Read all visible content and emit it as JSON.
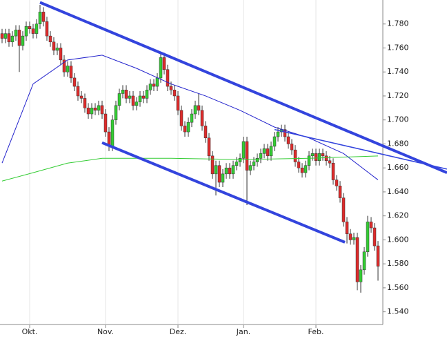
{
  "chart_data": {
    "type": "candlestick",
    "categories": [
      null,
      null,
      null,
      null,
      null,
      null,
      null,
      null,
      "Okt.",
      null,
      null,
      null,
      null,
      null,
      null,
      null,
      null,
      null,
      null,
      null,
      null,
      null,
      null,
      null,
      null,
      null,
      null,
      null,
      null,
      null,
      "Nov.",
      null,
      null,
      null,
      null,
      null,
      null,
      null,
      null,
      null,
      null,
      null,
      null,
      null,
      null,
      null,
      null,
      null,
      null,
      null,
      null,
      "Dez.",
      null,
      null,
      null,
      null,
      null,
      null,
      null,
      null,
      null,
      null,
      null,
      null,
      null,
      null,
      null,
      null,
      null,
      null,
      "Jan.",
      null,
      null,
      null,
      null,
      null,
      null,
      null,
      null,
      null,
      null,
      null,
      null,
      null,
      null,
      null,
      null,
      null,
      null,
      null,
      null,
      "Feb.",
      null,
      null,
      null,
      null,
      null,
      null,
      null,
      null,
      null,
      null,
      null,
      null,
      null,
      null,
      null,
      null,
      null,
      null
    ],
    "open": [
      1.772,
      1.768,
      1.772,
      1.765,
      1.77,
      1.775,
      1.762,
      1.77,
      1.778,
      1.776,
      1.772,
      1.78,
      1.79,
      1.782,
      1.77,
      1.765,
      1.758,
      1.76,
      1.75,
      1.74,
      1.745,
      1.735,
      1.728,
      1.72,
      1.718,
      1.71,
      1.705,
      1.71,
      1.708,
      1.712,
      1.705,
      1.69,
      1.678,
      1.7,
      1.712,
      1.722,
      1.725,
      1.718,
      1.72,
      1.712,
      1.715,
      1.72,
      1.718,
      1.725,
      1.73,
      1.728,
      1.735,
      1.752,
      1.742,
      1.728,
      1.725,
      1.72,
      1.708,
      1.695,
      1.69,
      1.698,
      1.705,
      1.712,
      1.708,
      1.695,
      1.685,
      1.67,
      1.655,
      1.662,
      1.648,
      1.655,
      1.66,
      1.655,
      1.662,
      1.665,
      1.668,
      1.682,
      1.658,
      1.662,
      1.665,
      1.668,
      1.672,
      1.676,
      1.67,
      1.678,
      1.686,
      1.69,
      1.692,
      1.686,
      1.68,
      1.675,
      1.665,
      1.66,
      1.656,
      1.662,
      1.67,
      1.672,
      1.666,
      1.672,
      1.67,
      1.666,
      1.664,
      1.65,
      1.645,
      1.635,
      1.615,
      1.605,
      1.6,
      1.602,
      1.565,
      1.575,
      1.59,
      1.615,
      1.61,
      1.595
    ],
    "high": [
      1.776,
      1.776,
      1.776,
      1.774,
      1.779,
      1.779,
      1.774,
      1.782,
      1.782,
      1.78,
      1.784,
      1.796,
      1.794,
      1.786,
      1.774,
      1.769,
      1.764,
      1.764,
      1.754,
      1.749,
      1.749,
      1.739,
      1.732,
      1.724,
      1.722,
      1.714,
      1.714,
      1.714,
      1.716,
      1.716,
      1.709,
      1.694,
      1.704,
      1.716,
      1.726,
      1.729,
      1.729,
      1.724,
      1.724,
      1.719,
      1.724,
      1.724,
      1.729,
      1.734,
      1.734,
      1.739,
      1.756,
      1.756,
      1.746,
      1.732,
      1.729,
      1.724,
      1.712,
      1.699,
      1.702,
      1.709,
      1.716,
      1.722,
      1.712,
      1.699,
      1.689,
      1.674,
      1.666,
      1.666,
      1.659,
      1.664,
      1.664,
      1.666,
      1.669,
      1.672,
      1.686,
      1.686,
      1.666,
      1.669,
      1.672,
      1.676,
      1.68,
      1.68,
      1.682,
      1.69,
      1.694,
      1.696,
      1.696,
      1.69,
      1.684,
      1.679,
      1.669,
      1.664,
      1.666,
      1.674,
      1.676,
      1.676,
      1.676,
      1.676,
      1.674,
      1.67,
      1.668,
      1.654,
      1.649,
      1.639,
      1.619,
      1.609,
      1.606,
      1.606,
      1.579,
      1.594,
      1.62,
      1.619,
      1.614,
      1.599
    ],
    "low": [
      1.764,
      1.764,
      1.761,
      1.761,
      1.766,
      1.74,
      1.758,
      1.766,
      1.772,
      1.768,
      1.768,
      1.776,
      1.778,
      1.766,
      1.761,
      1.754,
      1.754,
      1.746,
      1.736,
      1.736,
      1.731,
      1.724,
      1.716,
      1.714,
      1.706,
      1.701,
      1.701,
      1.704,
      1.704,
      1.701,
      1.686,
      1.674,
      1.674,
      1.696,
      1.708,
      1.718,
      1.714,
      1.714,
      1.708,
      1.708,
      1.711,
      1.714,
      1.714,
      1.721,
      1.724,
      1.724,
      1.731,
      1.738,
      1.724,
      1.721,
      1.716,
      1.704,
      1.691,
      1.686,
      1.686,
      1.694,
      1.701,
      1.704,
      1.691,
      1.681,
      1.666,
      1.651,
      1.637,
      1.644,
      1.644,
      1.651,
      1.651,
      1.651,
      1.658,
      1.661,
      1.664,
      1.629,
      1.654,
      1.658,
      1.661,
      1.664,
      1.668,
      1.666,
      1.666,
      1.674,
      1.682,
      1.686,
      1.682,
      1.676,
      1.671,
      1.661,
      1.656,
      1.652,
      1.652,
      1.658,
      1.666,
      1.662,
      1.662,
      1.666,
      1.662,
      1.66,
      1.646,
      1.641,
      1.631,
      1.611,
      1.597,
      1.596,
      1.596,
      1.558,
      1.556,
      1.571,
      1.586,
      1.606,
      1.591,
      1.566
    ],
    "close": [
      1.768,
      1.772,
      1.765,
      1.77,
      1.775,
      1.762,
      1.77,
      1.778,
      1.776,
      1.772,
      1.78,
      1.79,
      1.782,
      1.77,
      1.765,
      1.758,
      1.76,
      1.75,
      1.74,
      1.745,
      1.735,
      1.728,
      1.72,
      1.718,
      1.71,
      1.705,
      1.71,
      1.708,
      1.712,
      1.705,
      1.69,
      1.678,
      1.7,
      1.712,
      1.722,
      1.725,
      1.718,
      1.72,
      1.712,
      1.715,
      1.72,
      1.718,
      1.725,
      1.73,
      1.728,
      1.735,
      1.752,
      1.742,
      1.728,
      1.725,
      1.72,
      1.708,
      1.695,
      1.69,
      1.698,
      1.705,
      1.712,
      1.708,
      1.695,
      1.685,
      1.67,
      1.655,
      1.662,
      1.648,
      1.655,
      1.66,
      1.655,
      1.662,
      1.665,
      1.668,
      1.682,
      1.658,
      1.662,
      1.665,
      1.668,
      1.672,
      1.676,
      1.67,
      1.678,
      1.686,
      1.69,
      1.692,
      1.686,
      1.68,
      1.675,
      1.665,
      1.66,
      1.656,
      1.662,
      1.67,
      1.672,
      1.666,
      1.672,
      1.67,
      1.666,
      1.664,
      1.65,
      1.645,
      1.635,
      1.615,
      1.605,
      1.6,
      1.602,
      1.565,
      1.575,
      1.59,
      1.615,
      1.61,
      1.595,
      1.578
    ],
    "up_color": "#33cc33",
    "down_color": "#dd2b2b",
    "lines": [
      {
        "color": "#2222cc",
        "width": 1,
        "x": [
          0,
          9,
          19,
          29,
          39,
          49,
          59,
          69,
          79,
          89,
          99,
          109
        ],
        "values": [
          1.664,
          1.73,
          1.75,
          1.754,
          1.743,
          1.73,
          1.72,
          1.708,
          1.694,
          1.685,
          1.672,
          1.65
        ]
      },
      {
        "color": "#33cc33",
        "width": 1,
        "x": [
          0,
          9,
          19,
          29,
          49,
          69,
          89,
          109
        ],
        "values": [
          1.649,
          1.656,
          1.664,
          1.668,
          1.668,
          1.667,
          1.668,
          1.67
        ]
      },
      {
        "color": "#3344dd",
        "width": 4,
        "x": [
          11,
          129
        ],
        "values": [
          1.798,
          1.656
        ]
      },
      {
        "color": "#3344dd",
        "width": 1.5,
        "x": [
          79,
          129
        ],
        "values": [
          1.692,
          1.659
        ]
      },
      {
        "color": "#3344dd",
        "width": 4,
        "x": [
          29,
          99.4
        ],
        "values": [
          1.681,
          1.598
        ]
      }
    ],
    "ylim": [
      1.53,
      1.8
    ],
    "yticks": [
      {
        "value": 1.54,
        "label": "1.540"
      },
      {
        "value": 1.56,
        "label": "1.560"
      },
      {
        "value": 1.58,
        "label": "1.580"
      },
      {
        "value": 1.6,
        "label": "1.600"
      },
      {
        "value": 1.62,
        "label": "1.620"
      },
      {
        "value": 1.64,
        "label": "1.640"
      },
      {
        "value": 1.66,
        "label": "1.660"
      },
      {
        "value": 1.68,
        "label": "1.680"
      },
      {
        "value": 1.7,
        "label": "1.700"
      },
      {
        "value": 1.72,
        "label": "1.720"
      },
      {
        "value": 1.74,
        "label": "1.740"
      },
      {
        "value": 1.76,
        "label": "1.760"
      },
      {
        "value": 1.78,
        "label": "1.780"
      }
    ]
  }
}
